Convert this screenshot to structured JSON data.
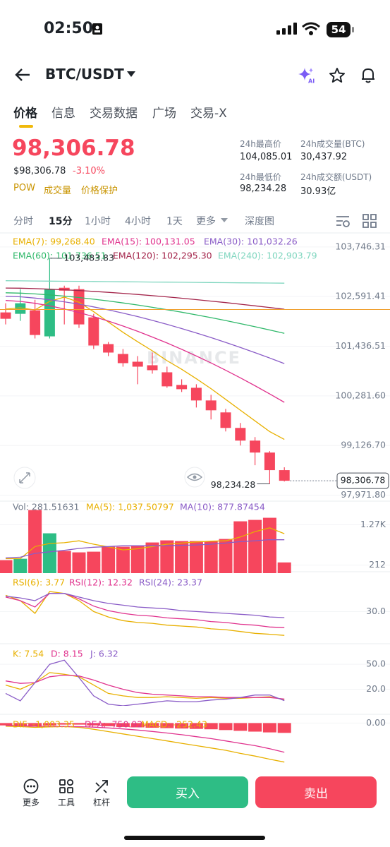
{
  "status_bar": {
    "time": "02:50",
    "battery": "54"
  },
  "header": {
    "pair": "BTC/USDT"
  },
  "tabs": [
    "价格",
    "信息",
    "交易数据",
    "广场",
    "交易-X"
  ],
  "price": {
    "last": "98,306.78",
    "usd": "$98,306.78",
    "change": "-3.10%",
    "tags": [
      "POW",
      "成交量",
      "价格保护"
    ]
  },
  "stats": [
    {
      "label": "24h最高价",
      "value": "104,085.01"
    },
    {
      "label": "24h成交量(BTC)",
      "value": "30,437.92"
    },
    {
      "label": "24h最低价",
      "value": "98,234.28"
    },
    {
      "label": "24h成交额(USDT)",
      "value": "30.93亿"
    }
  ],
  "intervals": [
    "分时",
    "15分",
    "1小时",
    "4小时",
    "1天",
    "更多",
    "深度图"
  ],
  "chart": {
    "kline": {
      "ylim": [
        97800,
        103990
      ],
      "yticks": [
        {
          "value": 103746.31,
          "label": "103,746.31"
        },
        {
          "value": 102591.41,
          "label": "102,591.41"
        },
        {
          "value": 101436.51,
          "label": "101,436.51"
        },
        {
          "value": 100281.6,
          "label": "100,281.60"
        },
        {
          "value": 99126.7,
          "label": "99,126.70"
        },
        {
          "value": 97971.8,
          "label": "97,971.80"
        }
      ],
      "open": [
        102223,
        102190,
        102272,
        101666,
        102796,
        102763,
        102108,
        101486,
        101256,
        101076,
        100994,
        100830,
        100536,
        100470,
        100175,
        99897,
        99536,
        99241,
        98963,
        98554
      ],
      "high": [
        102436,
        102763,
        102517,
        103483.83,
        102845,
        102845,
        102190,
        101535,
        101371,
        101207,
        101289,
        100961,
        100667,
        100552,
        100306,
        99979,
        99651,
        99323,
        98996,
        98620
      ],
      "low": [
        101944,
        102026,
        101617,
        101617,
        101944,
        101862,
        101371,
        101207,
        100961,
        100552,
        100798,
        100470,
        100372,
        100011,
        99733,
        99454,
        99127,
        98668,
        98234.28,
        98290
      ],
      "close": [
        102075,
        102436,
        101698,
        102763,
        102730,
        101944,
        101453,
        101289,
        101043,
        100961,
        100879,
        100503,
        100437,
        100175,
        99946,
        99536,
        99241,
        98963,
        98554,
        98306.78
      ],
      "up_color": "#2ebd85",
      "down_color": "#f6465d",
      "series": [
        {
          "name": "EMA(7): 99,268.40",
          "color": "#e8b000",
          "values": [
            102300,
            102330,
            102280,
            102480,
            102580,
            102460,
            102240,
            102000,
            101760,
            101540,
            101330,
            101100,
            100900,
            100680,
            100450,
            100200,
            99950,
            99700,
            99450,
            99268.4
          ]
        },
        {
          "name": "EMA(15): 100,131.05",
          "color": "#e0338e",
          "values": [
            102500,
            102479,
            102435,
            102376,
            102304,
            102220,
            102125,
            102021,
            101906,
            101783,
            101651,
            101512,
            101364,
            101209,
            101047,
            100877,
            100701,
            100517,
            100327,
            100131.05
          ]
        },
        {
          "name": "EMA(30): 101,032.26",
          "color": "#8a5cc7",
          "values": [
            102600,
            102586,
            102557,
            102518,
            102470,
            102415,
            102352,
            102283,
            102207,
            102126,
            102038,
            101946,
            101848,
            101746,
            101638,
            101526,
            101409,
            101288,
            101162,
            101032.26
          ]
        },
        {
          "name": "EMA(60): 101,736.51",
          "color": "#2fb86a",
          "values": [
            102680,
            102672,
            102654,
            102631,
            102602,
            102569,
            102531,
            102489,
            102444,
            102395,
            102342,
            102286,
            102228,
            102166,
            102101,
            102034,
            101963,
            101890,
            101815,
            101736.51
          ]
        },
        {
          "name": "EMA(120): 102,295.30",
          "color": "#a3244a",
          "values": [
            102790,
            102786,
            102776,
            102764,
            102749,
            102732,
            102712,
            102690,
            102666,
            102640,
            102613,
            102584,
            102553,
            102520,
            102486,
            102451,
            102414,
            102376,
            102336,
            102295.3
          ]
        },
        {
          "name": "EMA(240): 102,903.79",
          "color": "#7fd6bf",
          "values": [
            102960,
            102957,
            102954,
            102951,
            102948,
            102945,
            102942,
            102939,
            102936,
            102933,
            102930,
            102927,
            102924,
            102921,
            102918,
            102915,
            102912,
            102909,
            102906,
            102903.79
          ]
        }
      ],
      "ref_line": {
        "value": 102290,
        "color": "#f0a030"
      },
      "high_label": "103,483.83",
      "low_label": "98,234.28",
      "current_label": "98,306.78",
      "watermark": "BINANCE"
    },
    "volume": {
      "ylim": [
        0,
        1855
      ],
      "yticks": [
        {
          "value": 1270,
          "label": "1.27K"
        },
        212
      ],
      "name": "Vol: 281.51631",
      "values": [
        342,
        378,
        1658,
        1047,
        583,
        546,
        564,
        694,
        694,
        713,
        806,
        861,
        843,
        843,
        843,
        898,
        1362,
        1399,
        1455,
        281.51631
      ],
      "series": [
        {
          "name": "MA(5): 1,037.50797",
          "color": "#e8b000",
          "values": [
            380,
            380,
            700,
            780,
            800,
            850,
            760,
            690,
            610,
            640,
            700,
            760,
            790,
            820,
            840,
            850,
            950,
            1090,
            1190,
            1037.50797
          ]
        },
        {
          "name": "MA(10): 877.87454",
          "color": "#8a5cc7",
          "values": [
            400,
            420,
            520,
            560,
            600,
            650,
            680,
            700,
            720,
            720,
            720,
            720,
            730,
            740,
            760,
            790,
            830,
            850,
            880,
            877.87454
          ]
        }
      ]
    },
    "rsi": {
      "ylim": [
        0,
        70
      ],
      "yticks": [
        {
          "value": 30,
          "label": "30.0"
        }
      ],
      "series": [
        {
          "name": "RSI(6): 3.77",
          "color": "#e8b000",
          "values": [
            48,
            42,
            28,
            52,
            50,
            42,
            30,
            24,
            20,
            18,
            17,
            15,
            14,
            13,
            11,
            10,
            8,
            6,
            5,
            3.77
          ]
        },
        {
          "name": "RSI(12): 12.32",
          "color": "#e0338e",
          "values": [
            46,
            42,
            35,
            50,
            50,
            44,
            36,
            31,
            28,
            26,
            25,
            23,
            22,
            21,
            19,
            18,
            16,
            15,
            13,
            12.32
          ]
        },
        {
          "name": "RSI(24): 23.37",
          "color": "#8a5cc7",
          "values": [
            47,
            45,
            42,
            50,
            50,
            46,
            42,
            39,
            37,
            35,
            34,
            33,
            31,
            30,
            29,
            28,
            27,
            26,
            24,
            23.37
          ]
        }
      ]
    },
    "kdj": {
      "ylim": [
        0,
        68
      ],
      "yticks": [
        {
          "value": 50,
          "label": "50.0"
        },
        {
          "value": 20,
          "label": "20.0"
        }
      ],
      "series": [
        {
          "name": "K: 7.54",
          "color": "#e8b000",
          "values": [
            25,
            20,
            28,
            40,
            38,
            35,
            25,
            15,
            12,
            10,
            10,
            11,
            10,
            9,
            10,
            9,
            9,
            10,
            11,
            7.54
          ]
        },
        {
          "name": "D: 8.15",
          "color": "#e0338e",
          "values": [
            30,
            27,
            28,
            35,
            37,
            36,
            31,
            25,
            20,
            16,
            14,
            13,
            12,
            11,
            11,
            10,
            10,
            10,
            10,
            8.15
          ]
        },
        {
          "name": "J: 6.32",
          "color": "#8a5cc7",
          "values": [
            15,
            6,
            28,
            50,
            55,
            34,
            12,
            2,
            0,
            2,
            4,
            6,
            5,
            5,
            7,
            8,
            10,
            13,
            13,
            6.32
          ]
        }
      ]
    },
    "macd": {
      "ylim": [
        -1100,
        80
      ],
      "yticks": [
        {
          "value": 0,
          "label": "0.00"
        }
      ],
      "series": [
        {
          "name": "DIF: -1,003.35",
          "color": "#e8b000",
          "values": [
            -80,
            -90,
            -110,
            -100,
            -90,
            -110,
            -160,
            -220,
            -280,
            -340,
            -400,
            -460,
            -520,
            -580,
            -640,
            -700,
            -780,
            -850,
            -930,
            -1003.35
          ]
        },
        {
          "name": "DEA: -750.92",
          "color": "#e0338e",
          "values": [
            -60,
            -70,
            -80,
            -85,
            -88,
            -92,
            -105,
            -125,
            -150,
            -180,
            -215,
            -255,
            -300,
            -350,
            -400,
            -460,
            -520,
            -580,
            -660,
            -750.92
          ]
        }
      ],
      "histogram": {
        "name": "MACD: -252.43",
        "color": "#f6465d",
        "values": [
          -60,
          -80,
          -90,
          -60,
          -40,
          -40,
          -60,
          -80,
          -100,
          -110,
          -120,
          -130,
          -140,
          -150,
          -160,
          -180,
          -200,
          -220,
          -240,
          -252.43
        ]
      }
    }
  },
  "bottom_bar": {
    "tools": [
      "更多",
      "工具",
      "杠杆"
    ],
    "buy": "买入",
    "sell": "卖出"
  }
}
